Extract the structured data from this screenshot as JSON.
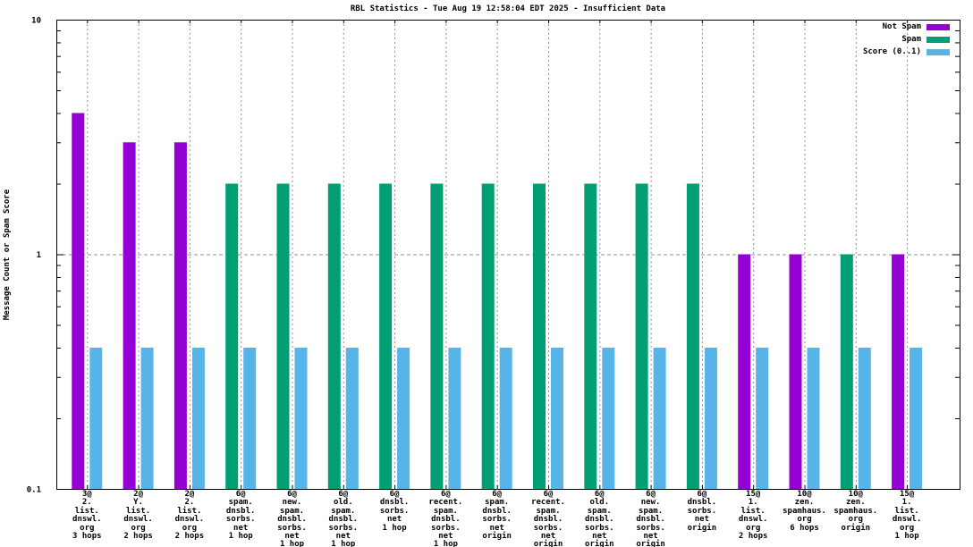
{
  "window": {
    "title": "RBL Statistics - Tue Aug 19 12:58:04 EDT 2025 - Insufficient Data"
  },
  "chart_data": {
    "type": "bar",
    "title": "RBL Statistics - Tue Aug 19 12:58:04 EDT 2025 - Insufficient Data",
    "xlabel": "",
    "ylabel": "Message Count or Spam Score",
    "y_scale": "log",
    "ylim": [
      0.1,
      10
    ],
    "y_major_ticks": [
      {
        "value": 10,
        "label": "10"
      },
      {
        "value": 1,
        "label": "1"
      },
      {
        "value": 0.1,
        "label": "0.1"
      }
    ],
    "y_minor_ticks": [
      0.2,
      0.3,
      0.4,
      0.5,
      0.6,
      0.7,
      0.8,
      0.9,
      2,
      3,
      4,
      5,
      6,
      7,
      8,
      9
    ],
    "grid": {
      "horizontal_dashed_at": 1,
      "vertical_dashed_at_each_category": true
    },
    "legend_position": "top-right-inside",
    "legend": [
      {
        "label": "Not Spam",
        "series": "not_spam",
        "color": "#9400d3"
      },
      {
        "label": "Spam",
        "series": "spam",
        "color": "#009e73"
      },
      {
        "label": "Score (0..1)",
        "series": "score",
        "color": "#56b4e9"
      }
    ],
    "series_colors": {
      "not_spam": "#9400d3",
      "spam": "#009e73",
      "score": "#56b4e9"
    },
    "grid_color": "#909090",
    "border_color": "#000000",
    "groups": [
      {
        "label_lines": [
          "3@",
          "2.",
          "list.",
          "dnswl.",
          "org",
          "3 hops"
        ],
        "category": "3@ 2.list.dnswl.org 3 hops",
        "series": "not_spam",
        "count": 4,
        "score": 0.4
      },
      {
        "label_lines": [
          "2@",
          "Y.",
          "list.",
          "dnswl.",
          "org",
          "2 hops"
        ],
        "category": "2@ Y.list.dnswl.org 2 hops",
        "series": "not_spam",
        "count": 3,
        "score": 0.4
      },
      {
        "label_lines": [
          "2@",
          "2.",
          "list.",
          "dnswl.",
          "org",
          "2 hops"
        ],
        "category": "2@ 2.list.dnswl.org 2 hops",
        "series": "not_spam",
        "count": 3,
        "score": 0.4
      },
      {
        "label_lines": [
          "6@",
          "spam.",
          "dnsbl.",
          "sorbs.",
          "net",
          "1 hop"
        ],
        "category": "6@ spam.dnsbl.sorbs.net 1 hop",
        "series": "spam",
        "count": 2,
        "score": 0.4
      },
      {
        "label_lines": [
          "6@",
          "new.",
          "spam.",
          "dnsbl.",
          "sorbs.",
          "net",
          "1 hop"
        ],
        "category": "6@ new.spam.dnsbl.sorbs.net 1 hop",
        "series": "spam",
        "count": 2,
        "score": 0.4
      },
      {
        "label_lines": [
          "6@",
          "old.",
          "spam.",
          "dnsbl.",
          "sorbs.",
          "net",
          "1 hop"
        ],
        "category": "6@ old.spam.dnsbl.sorbs.net 1 hop",
        "series": "spam",
        "count": 2,
        "score": 0.4
      },
      {
        "label_lines": [
          "6@",
          "dnsbl.",
          "sorbs.",
          "net",
          "1 hop"
        ],
        "category": "6@ dnsbl.sorbs.net 1 hop",
        "series": "spam",
        "count": 2,
        "score": 0.4
      },
      {
        "label_lines": [
          "6@",
          "recent.",
          "spam.",
          "dnsbl.",
          "sorbs.",
          "net",
          "1 hop"
        ],
        "category": "6@ recent.spam.dnsbl.sorbs.net 1 hop",
        "series": "spam",
        "count": 2,
        "score": 0.4
      },
      {
        "label_lines": [
          "6@",
          "spam.",
          "dnsbl.",
          "sorbs.",
          "net",
          "origin"
        ],
        "category": "6@ spam.dnsbl.sorbs.net origin",
        "series": "spam",
        "count": 2,
        "score": 0.4
      },
      {
        "label_lines": [
          "6@",
          "recent.",
          "spam.",
          "dnsbl.",
          "sorbs.",
          "net",
          "origin"
        ],
        "category": "6@ recent.spam.dnsbl.sorbs.net origin",
        "series": "spam",
        "count": 2,
        "score": 0.4
      },
      {
        "label_lines": [
          "6@",
          "old.",
          "spam.",
          "dnsbl.",
          "sorbs.",
          "net",
          "origin"
        ],
        "category": "6@ old.spam.dnsbl.sorbs.net origin",
        "series": "spam",
        "count": 2,
        "score": 0.4
      },
      {
        "label_lines": [
          "6@",
          "new.",
          "spam.",
          "dnsbl.",
          "sorbs.",
          "net",
          "origin"
        ],
        "category": "6@ new.spam.dnsbl.sorbs.net origin",
        "series": "spam",
        "count": 2,
        "score": 0.4
      },
      {
        "label_lines": [
          "6@",
          "dnsbl.",
          "sorbs.",
          "net",
          "origin"
        ],
        "category": "6@ dnsbl.sorbs.net origin",
        "series": "spam",
        "count": 2,
        "score": 0.4
      },
      {
        "label_lines": [
          "15@",
          "1.",
          "list.",
          "dnswl.",
          "org",
          "2 hops"
        ],
        "category": "15@ 1.list.dnswl.org 2 hops",
        "series": "not_spam",
        "count": 1,
        "score": 0.4
      },
      {
        "label_lines": [
          "10@",
          "zen.",
          "spamhaus.",
          "org",
          "6 hops"
        ],
        "category": "10@ zen.spamhaus.org 6 hops",
        "series": "not_spam",
        "count": 1,
        "score": 0.4
      },
      {
        "label_lines": [
          "10@",
          "zen.",
          "spamhaus.",
          "org",
          "origin"
        ],
        "category": "10@ zen.spamhaus.org origin",
        "series": "spam",
        "count": 1,
        "score": 0.4
      },
      {
        "label_lines": [
          "15@",
          "1.",
          "list.",
          "dnswl.",
          "org",
          "1 hop"
        ],
        "category": "15@ 1.list.dnswl.org 1 hop",
        "series": "not_spam",
        "count": 1,
        "score": 0.4
      }
    ]
  }
}
